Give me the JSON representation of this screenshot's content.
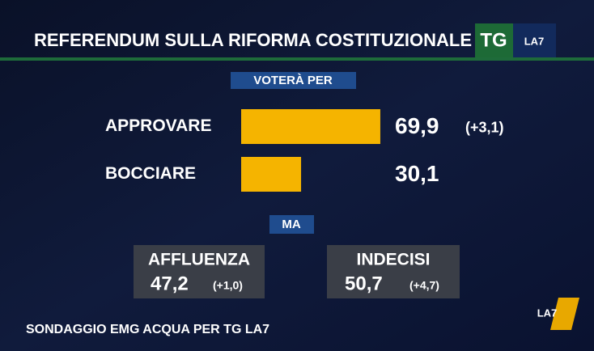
{
  "header": {
    "title": "REFERENDUM SULLA RIFORMA COSTITUZIONALE",
    "logo_left": "TG",
    "logo_right": "LA7"
  },
  "chart_data": {
    "type": "bar",
    "orientation": "horizontal",
    "subtitle": "VOTERÀ PER",
    "categories": [
      "APPROVARE",
      "BOCCIARE"
    ],
    "values": [
      69.9,
      30.1
    ],
    "value_labels": [
      "69,9",
      "30,1"
    ],
    "annotations": [
      "(+3,1)"
    ],
    "color": "#f5b400"
  },
  "separator": "MA",
  "panels": [
    {
      "label": "AFFLUENZA",
      "value": "47,2",
      "change": "(+1,0)"
    },
    {
      "label": "INDECISI",
      "value": "50,7",
      "change": "(+4,7)"
    }
  ],
  "source": "SONDAGGIO EMG ACQUA PER TG LA7",
  "corner_logo": "LA7"
}
